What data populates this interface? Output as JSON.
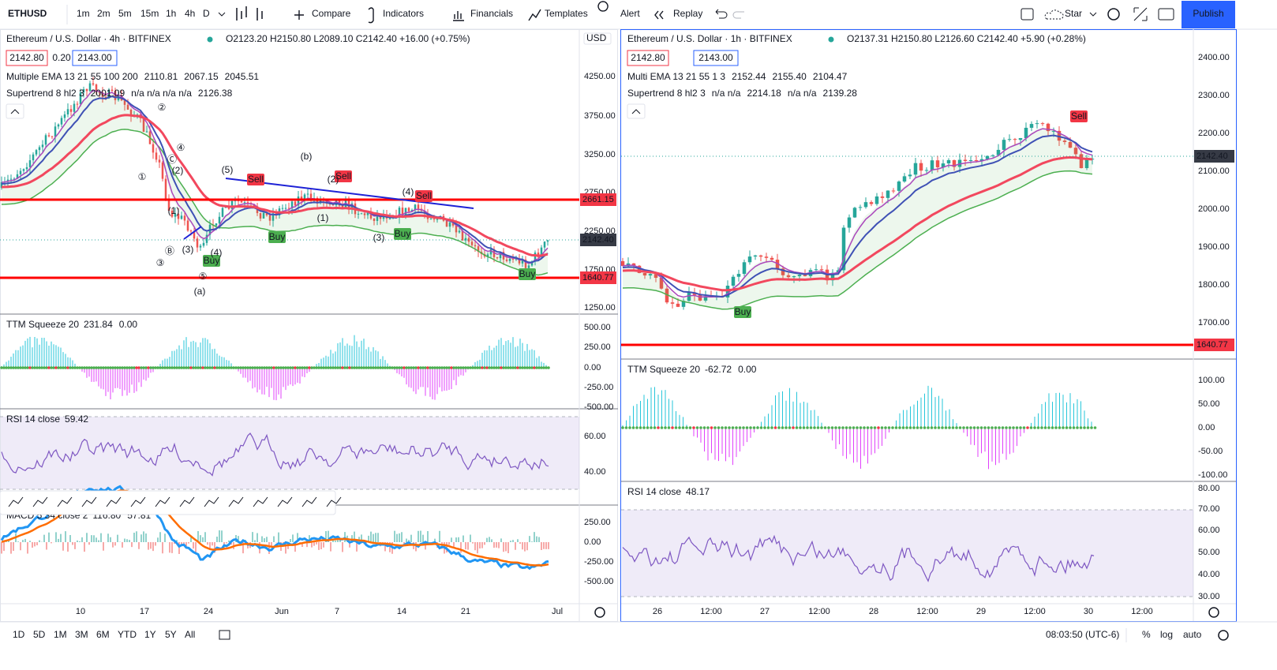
{
  "toolbar": {
    "symbol": "ETHUSD",
    "intervals": [
      "1m",
      "2m",
      "5m",
      "15m",
      "1h",
      "4h",
      "D"
    ],
    "actions": [
      "Compare",
      "Indicators",
      "Financials",
      "Templates",
      "Alert",
      "Replay"
    ],
    "star": "Star",
    "publish": "Publish"
  },
  "panes": [
    {
      "title": "Ethereum / U.S. Dollar · 4h · BITFINEX",
      "ohlc": "O2123.20 H2150.80 L2089.10 C2142.40 +16.00 (+0.75%)",
      "bid": "2142.80",
      "spread": "0.20",
      "ask": "2143.00",
      "studies": [
        {
          "name": "Multiple EMA 13 21 55 100 200",
          "values": [
            "2110.81",
            "2067.15",
            "2045.51"
          ]
        },
        {
          "name": "Supertrend 8 hl2 3",
          "values": [
            "2001.09",
            "n/a n/a n/a n/a",
            "2126.38"
          ]
        }
      ],
      "currency": "USD",
      "price_axis": [
        "4250.00",
        "3750.00",
        "3250.00",
        "2750.00",
        "2250.00",
        "1750.00",
        "1250.00"
      ],
      "price_tags": [
        "2661.15",
        "2142.40",
        "1640.77"
      ],
      "signals": [
        "Sell",
        "Sell",
        "Sell",
        "Buy",
        "Buy",
        "Buy",
        "Buy"
      ],
      "wave_labels": [
        "(b)",
        "(a)",
        "(5)",
        "(4)",
        "(3)",
        "(1)",
        "(2)",
        "(4)",
        "①",
        "②",
        "③",
        "④",
        "⑤",
        "Ⓑ",
        "Ⓒ",
        "(1)",
        "(2)",
        "(3)"
      ],
      "oscillators": [
        {
          "name": "TTM Squeeze 20",
          "values": [
            "231.84",
            "0.00"
          ],
          "axis": [
            "500.00",
            "250.00",
            "0.00",
            "-250.00",
            "-500.00"
          ]
        },
        {
          "name": "RSI 14 close",
          "values": [
            "59.42"
          ],
          "axis": [
            "60.00",
            "40.00"
          ]
        },
        {
          "name": "MACD 5 34 close 2",
          "values": [
            "116.80",
            "57.81"
          ],
          "axis": [
            "250.00",
            "0.00",
            "-250.00",
            "-500.00"
          ]
        }
      ],
      "time_axis": [
        "10",
        "17",
        "24",
        "Jun",
        "7",
        "14",
        "21",
        "Jul"
      ]
    },
    {
      "title": "Ethereum / U.S. Dollar · 1h · BITFINEX",
      "ohlc": "O2137.31 H2150.80 L2126.60 C2142.40 +5.90 (+0.28%)",
      "bid": "2142.80",
      "ask": "2143.00",
      "studies": [
        {
          "name": "Multi EMA 13 21 55 1 3",
          "values": [
            "2152.44",
            "2155.40",
            "2104.47"
          ]
        },
        {
          "name": "Supertrend 8 hl2 3",
          "values": [
            "n/a n/a",
            "2214.18",
            "n/a n/a",
            "2139.28"
          ]
        }
      ],
      "price_axis": [
        "2400.00",
        "2300.00",
        "2200.00",
        "2100.00",
        "2000.00",
        "1900.00",
        "1800.00",
        "1700.00"
      ],
      "price_tags": [
        "2142.40",
        "1640.77"
      ],
      "signals": [
        "Sell",
        "Buy"
      ],
      "oscillators": [
        {
          "name": "TTM Squeeze 20",
          "values": [
            "-62.72",
            "0.00"
          ],
          "axis": [
            "100.00",
            "50.00",
            "0.00",
            "-50.00",
            "-100.00"
          ]
        },
        {
          "name": "RSI 14 close",
          "values": [
            "48.17"
          ],
          "axis": [
            "80.00",
            "70.00",
            "60.00",
            "50.00",
            "40.00",
            "30.00"
          ]
        }
      ],
      "time_axis": [
        "26",
        "12:00",
        "27",
        "12:00",
        "28",
        "12:00",
        "29",
        "12:00",
        "30",
        "12:00"
      ]
    }
  ],
  "bottom_bar": {
    "ranges": [
      "1D",
      "5D",
      "1M",
      "3M",
      "6M",
      "YTD",
      "1Y",
      "5Y",
      "All"
    ],
    "clock": "08:03:50 (UTC-6)",
    "percent": "%",
    "log": "log",
    "auto": "auto"
  }
}
